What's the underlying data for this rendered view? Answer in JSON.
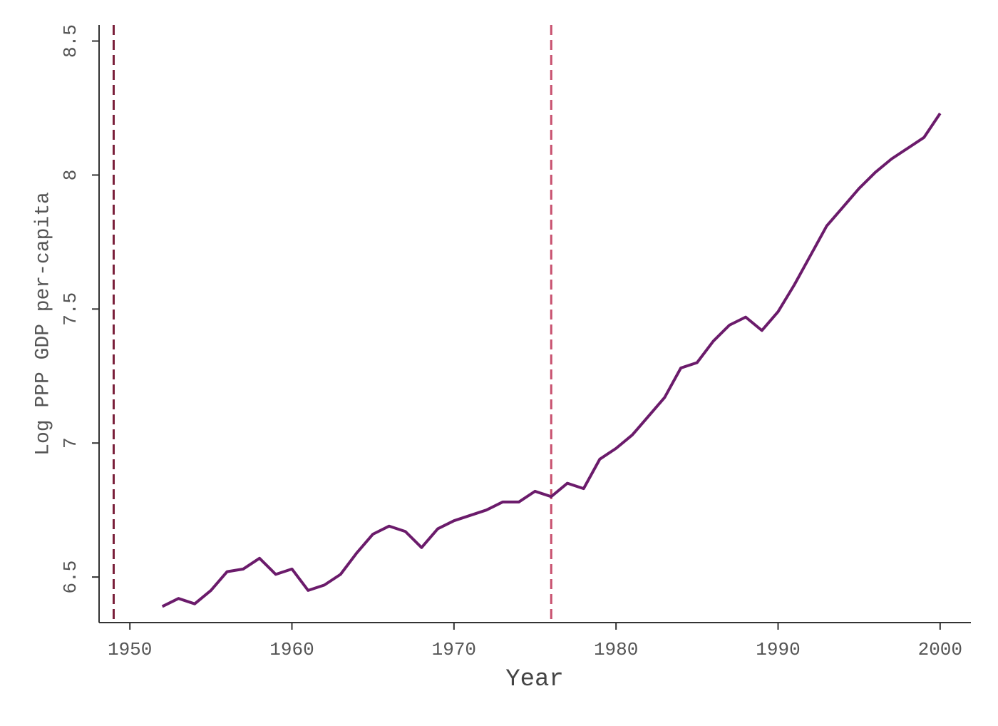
{
  "chart_data": {
    "type": "line",
    "x_label": "Year",
    "y_label": "Log PPP GDP per-capita",
    "x": [
      1952,
      1953,
      1954,
      1955,
      1956,
      1957,
      1958,
      1959,
      1960,
      1961,
      1962,
      1963,
      1964,
      1965,
      1966,
      1967,
      1968,
      1969,
      1970,
      1971,
      1972,
      1973,
      1974,
      1975,
      1976,
      1977,
      1978,
      1979,
      1980,
      1981,
      1982,
      1983,
      1984,
      1985,
      1986,
      1987,
      1988,
      1989,
      1990,
      1991,
      1992,
      1993,
      1994,
      1995,
      1996,
      1997,
      1998,
      1999,
      2000
    ],
    "series": [
      {
        "color": "#6b1b6b",
        "values": [
          6.39,
          6.42,
          6.4,
          6.45,
          6.52,
          6.53,
          6.57,
          6.51,
          6.53,
          6.45,
          6.47,
          6.51,
          6.59,
          6.66,
          6.69,
          6.67,
          6.61,
          6.68,
          6.71,
          6.73,
          6.75,
          6.78,
          6.78,
          6.82,
          6.8,
          6.85,
          6.83,
          6.94,
          6.98,
          7.03,
          7.1,
          7.17,
          7.28,
          7.3,
          7.38,
          7.44,
          7.47,
          7.42,
          7.49,
          7.59,
          7.7,
          7.81,
          7.88,
          7.95,
          8.01,
          8.06,
          8.1,
          8.14,
          8.23
        ]
      }
    ],
    "vlines": [
      {
        "x": 1949,
        "color": "#7a1f3a"
      },
      {
        "x": 1976,
        "color": "#c8506e"
      }
    ],
    "xlim": [
      1948.1,
      2001.9
    ],
    "ylim": [
      6.33,
      8.56
    ],
    "xticks": [
      1950,
      1960,
      1970,
      1980,
      1990,
      2000
    ],
    "yticks": [
      6.5,
      7,
      7.5,
      8,
      8.5
    ]
  }
}
